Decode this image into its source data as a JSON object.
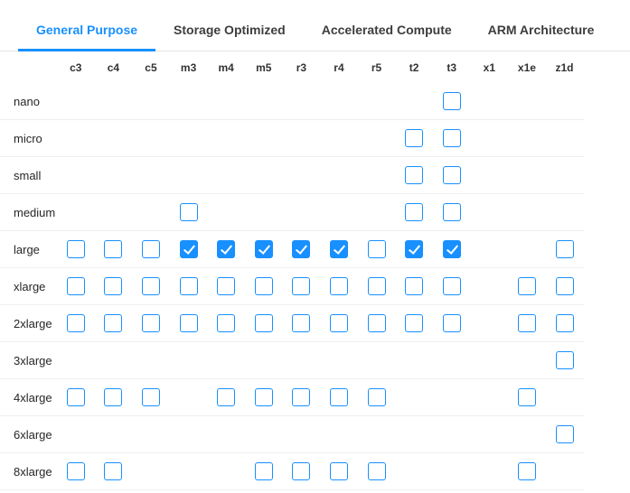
{
  "tabs": [
    {
      "label": "General Purpose",
      "active": true
    },
    {
      "label": "Storage Optimized",
      "active": false
    },
    {
      "label": "Accelerated Compute",
      "active": false
    },
    {
      "label": "ARM Architecture",
      "active": false
    }
  ],
  "columns": [
    "c3",
    "c4",
    "c5",
    "m3",
    "m4",
    "m5",
    "r3",
    "r4",
    "r5",
    "t2",
    "t3",
    "x1",
    "x1e",
    "z1d"
  ],
  "rows": [
    {
      "label": "nano",
      "cells": [
        "none",
        "none",
        "none",
        "none",
        "none",
        "none",
        "none",
        "none",
        "none",
        "none",
        "unchecked",
        "none",
        "none",
        "none"
      ]
    },
    {
      "label": "micro",
      "cells": [
        "none",
        "none",
        "none",
        "none",
        "none",
        "none",
        "none",
        "none",
        "none",
        "unchecked",
        "unchecked",
        "none",
        "none",
        "none"
      ]
    },
    {
      "label": "small",
      "cells": [
        "none",
        "none",
        "none",
        "none",
        "none",
        "none",
        "none",
        "none",
        "none",
        "unchecked",
        "unchecked",
        "none",
        "none",
        "none"
      ]
    },
    {
      "label": "medium",
      "cells": [
        "none",
        "none",
        "none",
        "unchecked",
        "none",
        "none",
        "none",
        "none",
        "none",
        "unchecked",
        "unchecked",
        "none",
        "none",
        "none"
      ]
    },
    {
      "label": "large",
      "cells": [
        "unchecked",
        "unchecked",
        "unchecked",
        "checked",
        "checked",
        "checked",
        "checked",
        "checked",
        "unchecked",
        "checked",
        "checked",
        "none",
        "none",
        "unchecked"
      ]
    },
    {
      "label": "xlarge",
      "cells": [
        "unchecked",
        "unchecked",
        "unchecked",
        "unchecked",
        "unchecked",
        "unchecked",
        "unchecked",
        "unchecked",
        "unchecked",
        "unchecked",
        "unchecked",
        "none",
        "unchecked",
        "unchecked"
      ]
    },
    {
      "label": "2xlarge",
      "cells": [
        "unchecked",
        "unchecked",
        "unchecked",
        "unchecked",
        "unchecked",
        "unchecked",
        "unchecked",
        "unchecked",
        "unchecked",
        "unchecked",
        "unchecked",
        "none",
        "unchecked",
        "unchecked"
      ]
    },
    {
      "label": "3xlarge",
      "cells": [
        "none",
        "none",
        "none",
        "none",
        "none",
        "none",
        "none",
        "none",
        "none",
        "none",
        "none",
        "none",
        "none",
        "unchecked"
      ]
    },
    {
      "label": "4xlarge",
      "cells": [
        "unchecked",
        "unchecked",
        "unchecked",
        "none",
        "unchecked",
        "unchecked",
        "unchecked",
        "unchecked",
        "unchecked",
        "none",
        "none",
        "none",
        "unchecked",
        "none"
      ]
    },
    {
      "label": "6xlarge",
      "cells": [
        "none",
        "none",
        "none",
        "none",
        "none",
        "none",
        "none",
        "none",
        "none",
        "none",
        "none",
        "none",
        "none",
        "unchecked"
      ]
    },
    {
      "label": "8xlarge",
      "cells": [
        "unchecked",
        "unchecked",
        "none",
        "none",
        "none",
        "unchecked",
        "unchecked",
        "unchecked",
        "unchecked",
        "none",
        "none",
        "none",
        "unchecked",
        "none"
      ]
    }
  ],
  "colors": {
    "accent_blue": "#1890ff",
    "tab_inactive_text": "#3d3d3d",
    "column_header_text": "#333333",
    "row_label_text": "#262626",
    "row_separator": "#efefef",
    "tabbar_line": "#e4e4e4"
  }
}
